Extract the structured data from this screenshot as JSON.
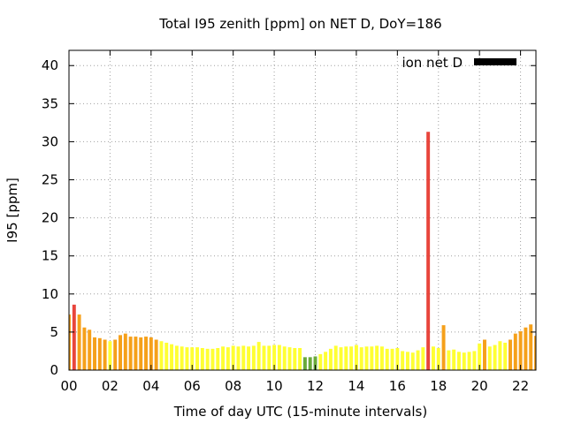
{
  "chart_data": {
    "type": "bar",
    "title": "Total I95 zenith [ppm] on NET D, DoY=186",
    "xlabel": "Time of day UTC (15-minute intervals)",
    "ylabel": "I95 [ppm]",
    "xlim": [
      0,
      22.75
    ],
    "ylim": [
      0,
      42
    ],
    "x_ticks": [
      0,
      2,
      4,
      6,
      8,
      10,
      12,
      14,
      16,
      18,
      20,
      22
    ],
    "x_tick_labels": [
      "00",
      "02",
      "04",
      "06",
      "08",
      "10",
      "12",
      "14",
      "16",
      "18",
      "20",
      "22"
    ],
    "y_ticks": [
      0,
      5,
      10,
      15,
      20,
      25,
      30,
      35,
      40
    ],
    "y_tick_labels": [
      "0",
      "5",
      "10",
      "15",
      "20",
      "25",
      "30",
      "35",
      "40"
    ],
    "grid": true,
    "legend": {
      "label": "ion net D",
      "color": "#000000",
      "placement": "top-right"
    },
    "bar_width_hours": 0.17,
    "color_scale": [
      {
        "max": 2,
        "color": "#6aaa3a"
      },
      {
        "max": 4,
        "color": "#ffff33"
      },
      {
        "max": 8,
        "color": "#f5a01a"
      },
      {
        "max": 1000,
        "color": "#e8453c"
      }
    ],
    "x": [
      0,
      0.25,
      0.5,
      0.75,
      1,
      1.25,
      1.5,
      1.75,
      2,
      2.25,
      2.5,
      2.75,
      3,
      3.25,
      3.5,
      3.75,
      4,
      4.25,
      4.5,
      4.75,
      5,
      5.25,
      5.5,
      5.75,
      6,
      6.25,
      6.5,
      6.75,
      7,
      7.25,
      7.5,
      7.75,
      8,
      8.25,
      8.5,
      8.75,
      9,
      9.25,
      9.5,
      9.75,
      10,
      10.25,
      10.5,
      10.75,
      11,
      11.25,
      11.5,
      11.75,
      12,
      12.25,
      12.5,
      12.75,
      13,
      13.25,
      13.5,
      13.75,
      14,
      14.25,
      14.5,
      14.75,
      15,
      15.25,
      15.5,
      15.75,
      16,
      16.25,
      16.5,
      16.75,
      17,
      17.25,
      17.5,
      17.75,
      18,
      18.25,
      18.5,
      18.75,
      19,
      19.25,
      19.5,
      19.75,
      20,
      20.25,
      20.5,
      20.75,
      21,
      21.25,
      21.5,
      21.75,
      22,
      22.25,
      22.5,
      22.75
    ],
    "values": [
      7.3,
      8.6,
      7.3,
      5.6,
      5.3,
      4.3,
      4.2,
      4.0,
      3.8,
      4.0,
      4.6,
      4.8,
      4.4,
      4.4,
      4.3,
      4.4,
      4.3,
      4.0,
      3.8,
      3.6,
      3.4,
      3.2,
      3.1,
      3.0,
      3.0,
      3.0,
      2.9,
      2.8,
      2.8,
      2.9,
      3.1,
      3.0,
      3.2,
      3.1,
      3.2,
      3.1,
      3.2,
      3.7,
      3.2,
      3.2,
      3.3,
      3.3,
      3.1,
      3.0,
      2.9,
      2.9,
      1.7,
      1.7,
      1.8,
      2.1,
      2.4,
      2.8,
      3.2,
      3.0,
      3.1,
      3.1,
      3.3,
      3.0,
      3.1,
      3.1,
      3.2,
      3.1,
      2.8,
      2.8,
      2.9,
      2.5,
      2.4,
      2.3,
      2.6,
      3.0,
      31.3,
      3.1,
      2.9,
      5.9,
      2.6,
      2.7,
      2.4,
      2.3,
      2.4,
      2.5,
      3.5,
      4.0,
      3.1,
      3.3,
      3.8,
      3.6,
      4.0,
      4.8,
      5.1,
      5.6,
      6.0,
      4.5
    ]
  }
}
